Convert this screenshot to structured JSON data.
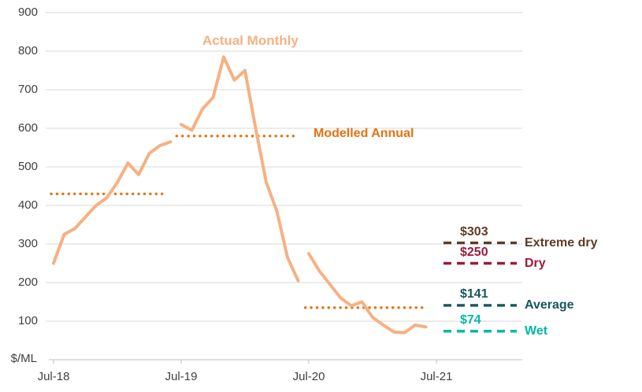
{
  "chart_data": {
    "type": "line",
    "title": "",
    "y_unit": "$/ML",
    "y_axis": {
      "min": 0,
      "max": 900,
      "gridline_step": 100,
      "tick_values": [
        900,
        800,
        700,
        600,
        500,
        400,
        300,
        200,
        100
      ],
      "tick_labels": [
        "900",
        "800",
        "700",
        "600",
        "500",
        "400",
        "300",
        "200",
        "100"
      ],
      "grid": true
    },
    "x_axis": {
      "tick_labels": [
        "Jul-18",
        "Jul-19",
        "Jul-20",
        "Jul-21"
      ],
      "tick_months": [
        0,
        12,
        24,
        36
      ],
      "months_span": 36
    },
    "series": [
      {
        "name": "Actual Monthly",
        "type": "line",
        "style": "solid",
        "color": "#F5B183",
        "segments": [
          {
            "period": "Jul-18 to Jun-19",
            "start_month": 0,
            "months": [
              "Jul-18",
              "Aug-18",
              "Sep-18",
              "Oct-18",
              "Nov-18",
              "Dec-18",
              "Jan-19",
              "Feb-19",
              "Mar-19",
              "Apr-19",
              "May-19",
              "Jun-19"
            ],
            "values": [
              250,
              325,
              340,
              370,
              400,
              420,
              460,
              510,
              480,
              535,
              555,
              565
            ]
          },
          {
            "period": "Jul-19 to Jun-20",
            "start_month": 12,
            "months": [
              "Jul-19",
              "Aug-19",
              "Sep-19",
              "Oct-19",
              "Nov-19",
              "Dec-19",
              "Jan-20",
              "Feb-20",
              "Mar-20",
              "Apr-20",
              "May-20",
              "Jun-20"
            ],
            "values": [
              610,
              595,
              650,
              680,
              785,
              725,
              750,
              600,
              460,
              385,
              265,
              205
            ]
          },
          {
            "period": "Jul-20 to Jun-21",
            "start_month": 24,
            "months": [
              "Jul-20",
              "Aug-20",
              "Sep-20",
              "Oct-20",
              "Nov-20",
              "Dec-20",
              "Jan-21",
              "Feb-21",
              "Mar-21",
              "Apr-21",
              "May-21",
              "Jun-21"
            ],
            "values": [
              275,
              230,
              195,
              160,
              140,
              150,
              110,
              90,
              72,
              70,
              90,
              85
            ]
          }
        ]
      },
      {
        "name": "Modelled Annual",
        "type": "horizontal-dotted-line",
        "style": "dotted",
        "color": "#E97010",
        "segments": [
          {
            "period": "Jul-18 to Jun-19",
            "value": 430,
            "from_month": 0.0,
            "to_month": 10.7
          },
          {
            "period": "Jul-19 to Jun-20",
            "value": 580,
            "from_month": 11.8,
            "to_month": 22.9
          },
          {
            "period": "Jul-20 to Jun-21",
            "value": 135,
            "from_month": 23.9,
            "to_month": 35.1
          }
        ]
      }
    ],
    "reference_lines": [
      {
        "label": "Extreme dry",
        "value": 303,
        "value_label": "$303",
        "color": "#5E3A23",
        "style": "dashed"
      },
      {
        "label": "Dry",
        "value": 250,
        "value_label": "$250",
        "color": "#9E1B3C",
        "style": "dashed"
      },
      {
        "label": "Average",
        "value": 141,
        "value_label": "$141",
        "color": "#16565E",
        "style": "dashed"
      },
      {
        "label": "Wet",
        "value": 74,
        "value_label": "$74",
        "color": "#00B9A5",
        "style": "dashed"
      }
    ],
    "layout_hints": {
      "gridline_color": "#D9D9D9",
      "axis_line_color": "#BFBFBF",
      "axis_text_color": "#404040",
      "legend_position": "inline-annotations"
    }
  }
}
